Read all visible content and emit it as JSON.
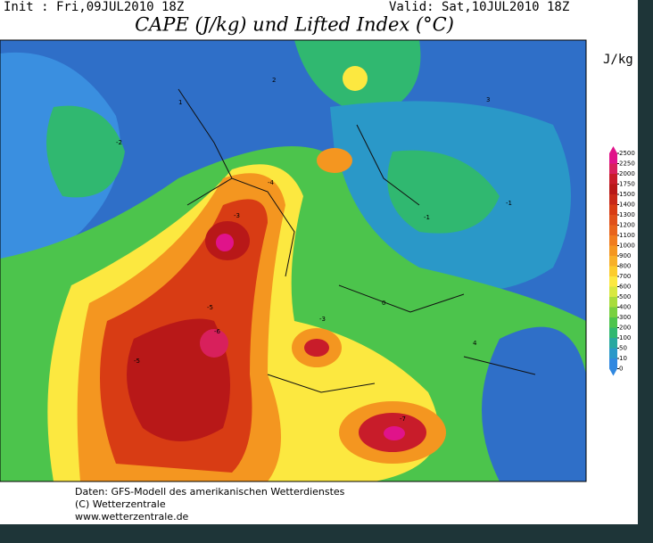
{
  "header": {
    "init": "Init : Fri,09JUL2010 18Z",
    "valid": "Valid: Sat,10JUL2010 18Z",
    "title": "CAPE (J/kg) und Lifted Index (°C)"
  },
  "legend": {
    "unit": "J/kg",
    "levels": [
      2500,
      2250,
      2000,
      1750,
      1500,
      1400,
      1300,
      1200,
      1100,
      1000,
      900,
      800,
      700,
      600,
      500,
      400,
      300,
      200,
      100,
      50,
      10,
      0
    ],
    "colors": [
      "#e0138a",
      "#d8205c",
      "#c81c2a",
      "#b81818",
      "#c82818",
      "#d83c14",
      "#e0501a",
      "#e8641c",
      "#f07c1e",
      "#f49620",
      "#f8b028",
      "#fccc2c",
      "#fce840",
      "#d8e840",
      "#a8dc3c",
      "#78d040",
      "#4cc44c",
      "#30b870",
      "#28a8a0",
      "#2a98c8",
      "#3088e0"
    ]
  },
  "contour_labels": [
    "-1",
    "-2",
    "-3",
    "-4",
    "-5",
    "-6",
    "-7",
    "0",
    "1",
    "2",
    "3",
    "4"
  ],
  "footer": {
    "source": "Daten: GFS-Modell des amerikanischen Wetterdienstes",
    "copyright": "(C) Wetterzentrale",
    "url": "www.wetterzentrale.de"
  }
}
